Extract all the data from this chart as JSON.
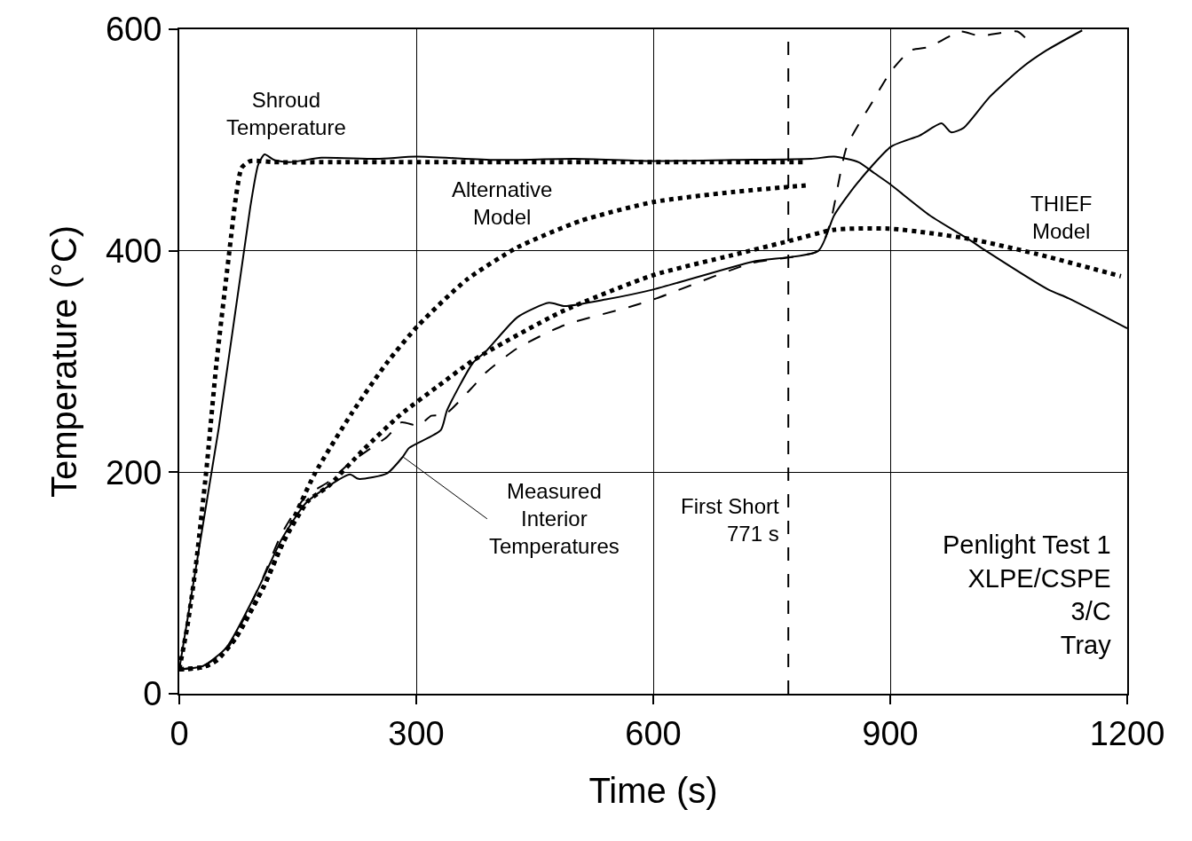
{
  "chart_data": {
    "type": "line",
    "xlabel": "Time (s)",
    "ylabel": "Temperature (°C)",
    "xlim": [
      0,
      1200
    ],
    "xticks": [
      0,
      300,
      600,
      900,
      1200
    ],
    "ylim": [
      0,
      600
    ],
    "yticks": [
      0,
      200,
      400,
      600
    ],
    "grid": true,
    "series": [
      {
        "color": "#000000",
        "line_style": "solid",
        "x": [
          0,
          50,
          90,
          100,
          108,
          120,
          140,
          180,
          250,
          300,
          400,
          500,
          600,
          700,
          800,
          829,
          860,
          880,
          900,
          950,
          1000,
          1021,
          1100,
          1126,
          1200
        ],
        "values": [
          22,
          240,
          440,
          478,
          487,
          482,
          480,
          484,
          483,
          485,
          482,
          483,
          481,
          482,
          483,
          485,
          480,
          470,
          460,
          432,
          410,
          400,
          365,
          357,
          330
        ]
      },
      {
        "color": "#000000",
        "line_style": "dotted",
        "x": [
          0,
          10,
          20,
          34,
          47,
          63,
          72,
          79,
          90,
          120,
          200,
          300,
          400,
          500,
          600,
          700,
          790
        ],
        "values": [
          22,
          60,
          110,
          200,
          298,
          397,
          450,
          475,
          481,
          480,
          480,
          480,
          480,
          480,
          480,
          480,
          480
        ]
      },
      {
        "color": "#000000",
        "line_style": "dotted",
        "x": [
          0,
          30,
          47,
          71,
          107,
          131,
          171,
          219,
          263,
          303,
          364,
          428,
          508,
          600,
          700,
          793
        ],
        "values": [
          22,
          24,
          30,
          50,
          97,
          136,
          198,
          254,
          299,
          333,
          374,
          403,
          427,
          444,
          453,
          459
        ]
      },
      {
        "color": "#000000",
        "line_style": "dotted",
        "x": [
          0,
          30,
          47,
          71,
          107,
          131,
          163,
          188,
          234,
          280,
          328,
          372,
          484,
          600,
          700,
          773,
          829,
          898,
          950,
          1006,
          1086,
          1192
        ],
        "values": [
          22,
          24,
          30,
          50,
          97,
          136,
          174,
          187,
          221,
          252,
          278,
          301,
          345,
          378,
          396,
          409,
          419,
          420,
          416,
          410,
          397,
          377
        ]
      },
      {
        "color": "#000000",
        "line_style": "solid",
        "x": [
          0,
          30,
          60,
          100,
          130,
          160,
          190,
          216,
          227,
          263,
          283,
          291,
          331,
          339,
          372,
          388,
          428,
          468,
          488,
          540,
          600,
          725,
          809,
          829,
          857,
          901,
          937,
          965,
          977,
          993,
          1026,
          1066,
          1098,
          1143
        ],
        "values": [
          22,
          25,
          42,
          95,
          140,
          172,
          188,
          198,
          194,
          199,
          214,
          222,
          238,
          256,
          299,
          309,
          340,
          353,
          350,
          356,
          365,
          390,
          400,
          432,
          460,
          494,
          504,
          515,
          507,
          511,
          539,
          565,
          581,
          599
        ]
      },
      {
        "color": "#000000",
        "line_style": "dashed",
        "x": [
          0,
          30,
          60,
          100,
          130,
          160,
          190,
          217,
          263,
          281,
          303,
          319,
          336,
          370,
          388,
          428,
          488,
          569,
          604,
          725,
          809,
          824,
          845,
          877,
          901,
          926,
          949,
          989,
          1013,
          1061,
          1074
        ],
        "values": [
          22,
          25,
          40,
          95,
          145,
          178,
          192,
          209,
          232,
          245,
          242,
          251,
          252,
          276,
          290,
          312,
          333,
          349,
          357,
          389,
          400,
          425,
          494,
          534,
          562,
          581,
          584,
          598,
          594,
          598,
          590
        ]
      }
    ],
    "ref_lines": [
      {
        "axis": "x",
        "value": 771,
        "label": "First Short\n771 s",
        "line_style": "dashed",
        "color": "#000000"
      }
    ],
    "annotations": [
      "Shroud\nTemperature",
      "Alternative\nModel",
      "THIEF\nModel",
      {
        "text": "Measured\nInterior\nTemperatures",
        "x": 283,
        "y": 214
      },
      "Penlight Test 1\nXLPE/CSPE\n3/C\nTray"
    ]
  }
}
